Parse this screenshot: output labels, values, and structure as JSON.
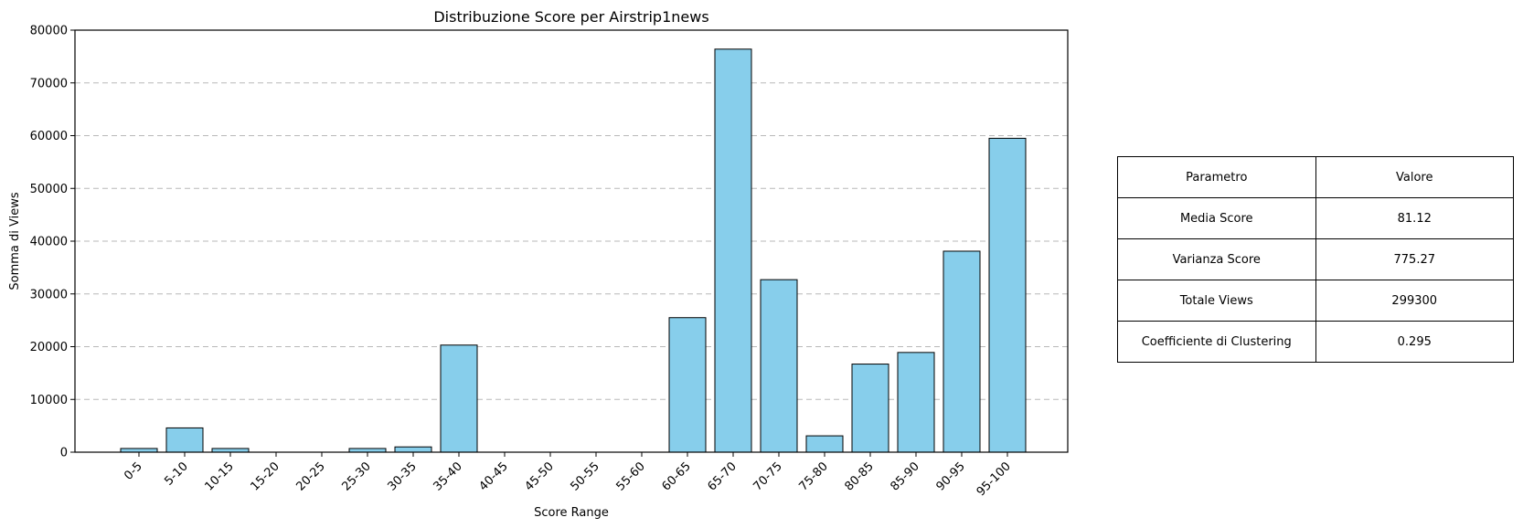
{
  "chart_data": {
    "type": "bar",
    "title": "Distribuzione Score per Airstrip1news",
    "xlabel": "Score Range",
    "ylabel": "Somma di Views",
    "categories": [
      "0-5",
      "5-10",
      "10-15",
      "15-20",
      "20-25",
      "25-30",
      "30-35",
      "35-40",
      "40-45",
      "45-50",
      "50-55",
      "55-60",
      "60-65",
      "65-70",
      "70-75",
      "75-80",
      "80-85",
      "85-90",
      "90-95",
      "95-100"
    ],
    "values": [
      700,
      4600,
      700,
      0,
      0,
      700,
      1000,
      20300,
      0,
      0,
      0,
      0,
      25500,
      76400,
      32700,
      3100,
      16700,
      18900,
      38100,
      59500
    ],
    "ylim": [
      0,
      80000
    ],
    "yticks": [
      0,
      10000,
      20000,
      30000,
      40000,
      50000,
      60000,
      70000,
      80000
    ],
    "grid": "y-dashed",
    "bar_color": "#87CEEB",
    "edge_color": "#000000"
  },
  "table": {
    "header": [
      "Parametro",
      "Valore"
    ],
    "rows": [
      [
        "Media Score",
        "81.12"
      ],
      [
        "Varianza Score",
        "775.27"
      ],
      [
        "Totale Views",
        "299300"
      ],
      [
        "Coefficiente di Clustering",
        "0.295"
      ]
    ]
  }
}
